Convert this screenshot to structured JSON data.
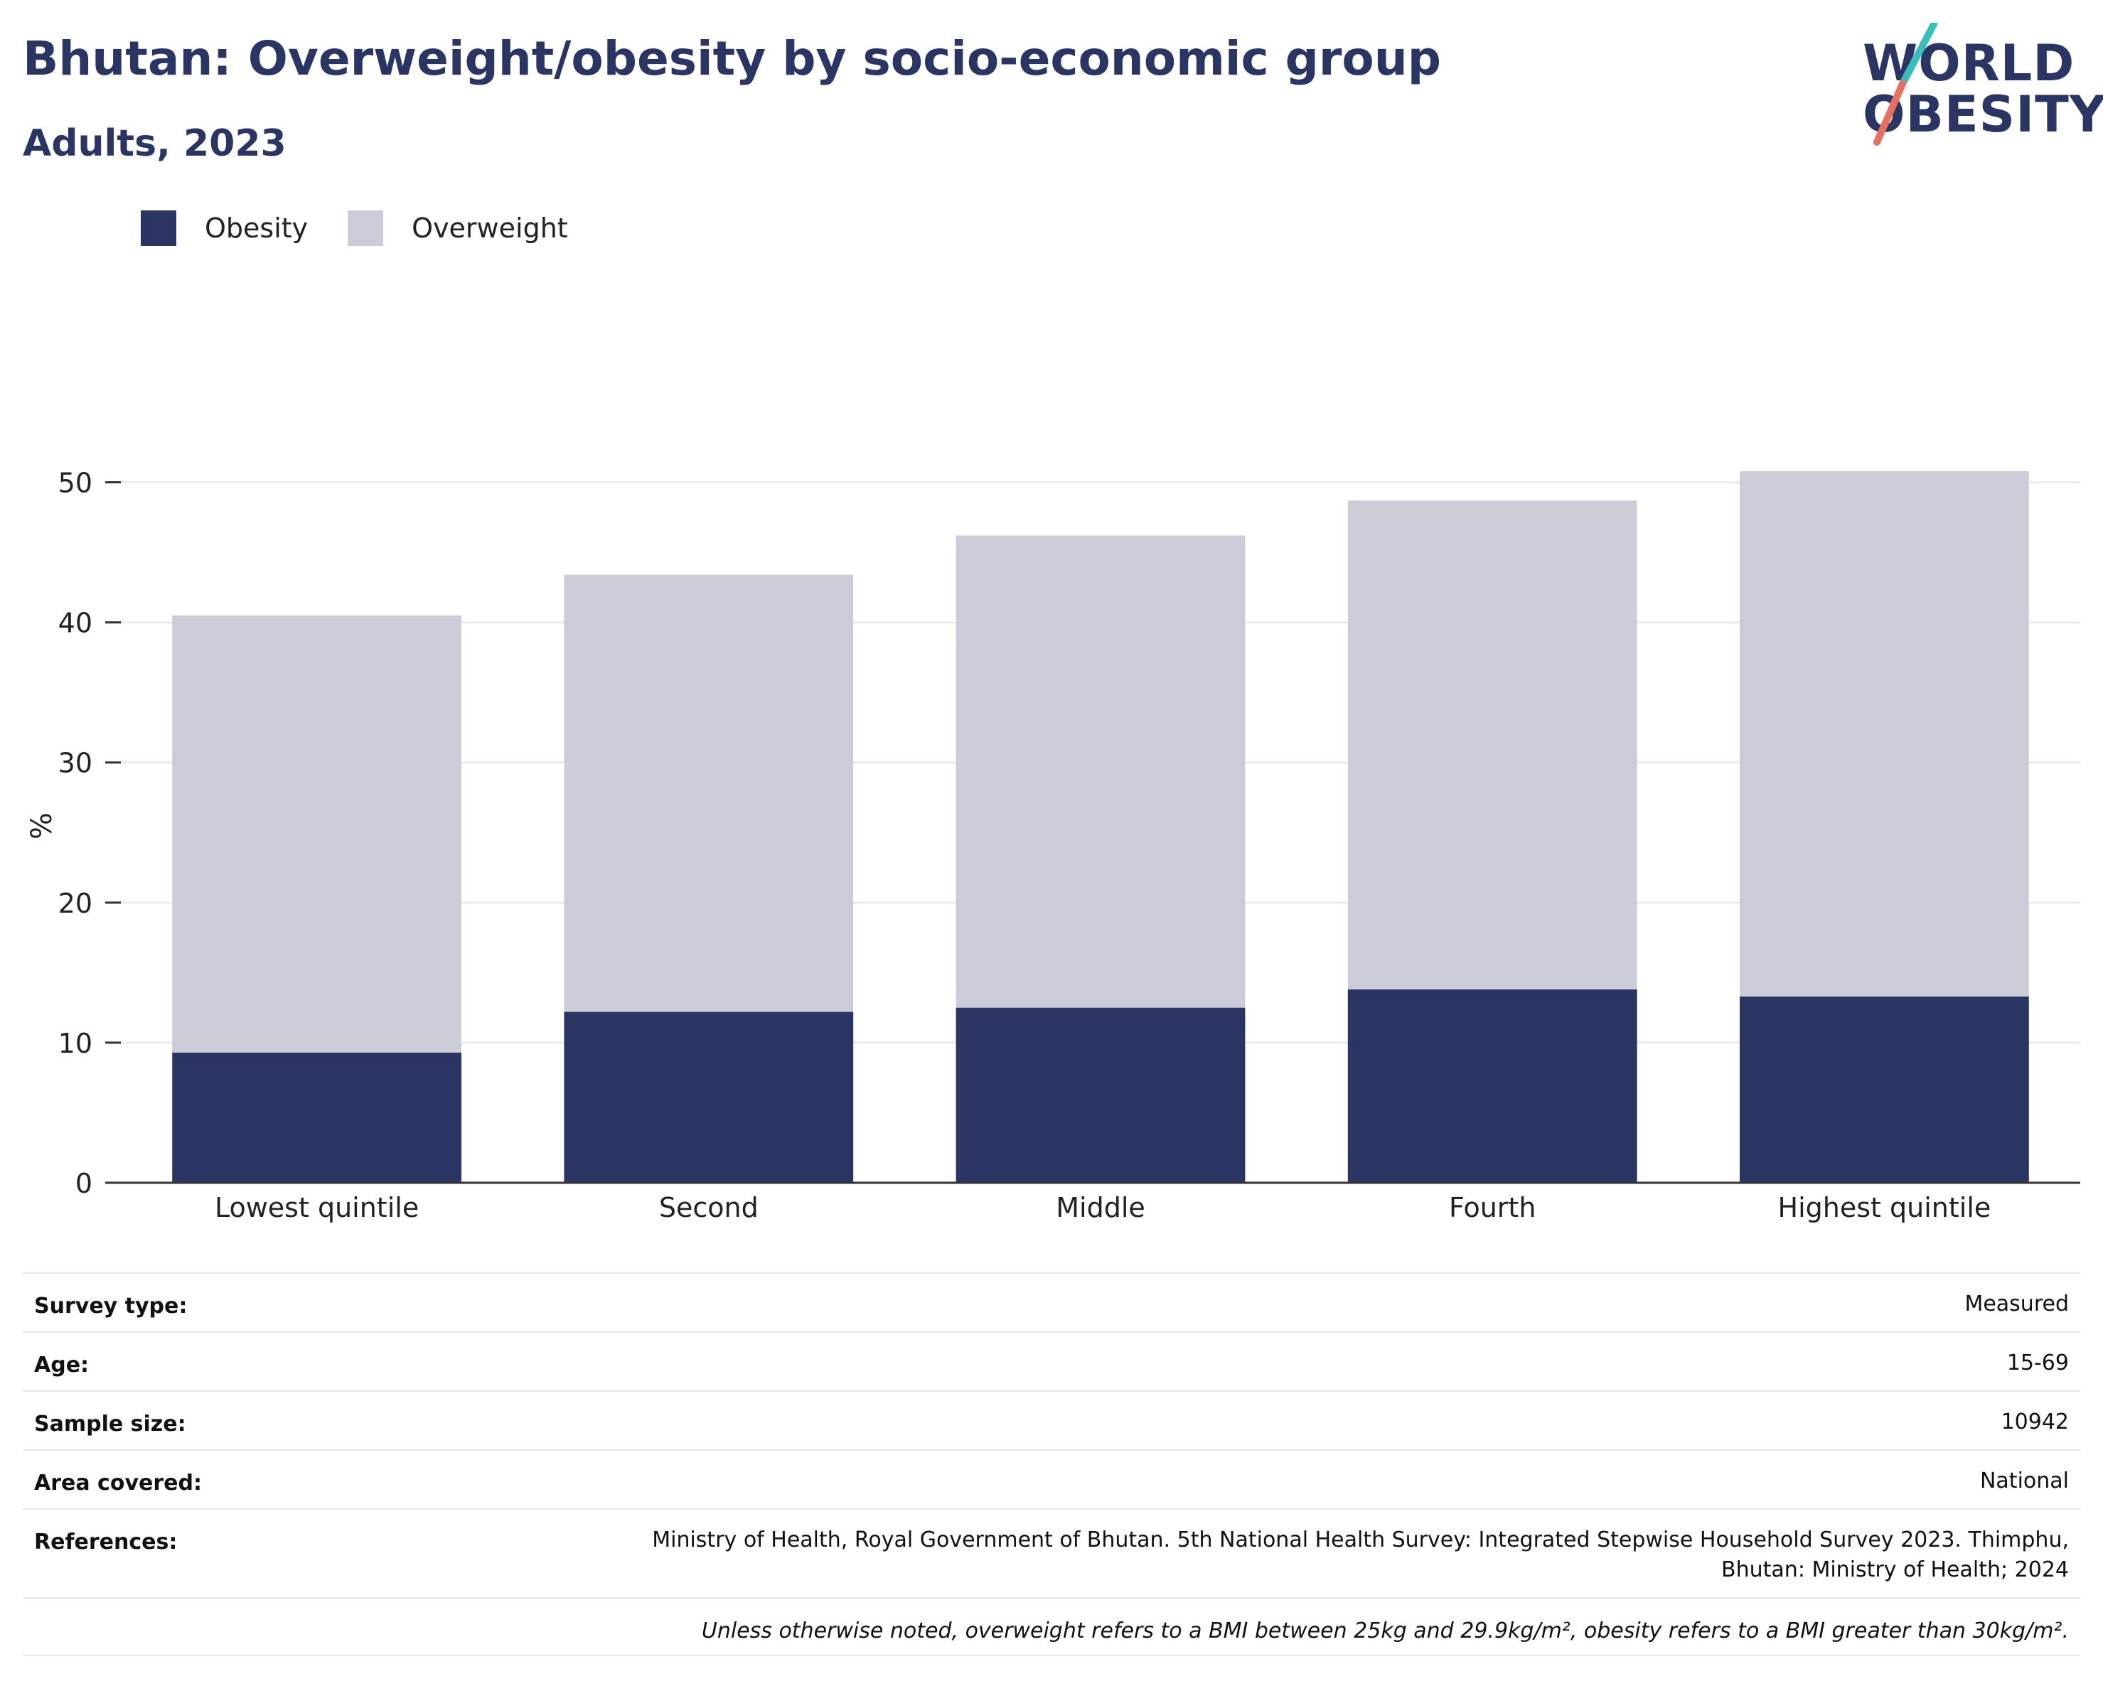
{
  "header": {
    "title": "Bhutan: Overweight/obesity by socio-economic group",
    "subtitle": "Adults, 2023"
  },
  "logo": {
    "line1": "WORLD",
    "line2": "OBESITY",
    "colors": {
      "text": "#2a3563",
      "slash_top": "#3bbdbd",
      "slash_bottom": "#e87060"
    }
  },
  "legend": [
    {
      "label": "Obesity",
      "color": "#2a3563"
    },
    {
      "label": "Overweight",
      "color": "#cbccd8"
    }
  ],
  "chart_data": {
    "type": "bar",
    "stacked": true,
    "categories": [
      "Lowest quintile",
      "Second",
      "Middle",
      "Fourth",
      "Highest quintile"
    ],
    "series": [
      {
        "name": "Obesity",
        "color": "#2a3563",
        "values": [
          9.3,
          12.2,
          12.5,
          13.8,
          13.3
        ]
      },
      {
        "name": "Overweight",
        "color": "#cbccd8",
        "values": [
          31.2,
          31.2,
          33.7,
          34.9,
          37.5
        ]
      }
    ],
    "ylabel": "%",
    "ylim": [
      0,
      55
    ],
    "yticks": [
      0,
      10,
      20,
      30,
      40,
      50
    ],
    "grid": true,
    "legend_position": "top-left"
  },
  "meta": [
    {
      "label": "Survey type:",
      "value": "Measured"
    },
    {
      "label": "Age:",
      "value": "15-69"
    },
    {
      "label": "Sample size:",
      "value": "10942"
    },
    {
      "label": "Area covered:",
      "value": "National"
    },
    {
      "label": "References:",
      "value": "Ministry of Health, Royal Government of Bhutan. 5th National Health Survey: Integrated Stepwise Household Survey 2023. Thimphu, Bhutan: Ministry of Health; 2024"
    }
  ],
  "note": "Unless otherwise noted, overweight refers to a BMI between 25kg and 29.9kg/m², obesity refers to a BMI greater than 30kg/m²."
}
